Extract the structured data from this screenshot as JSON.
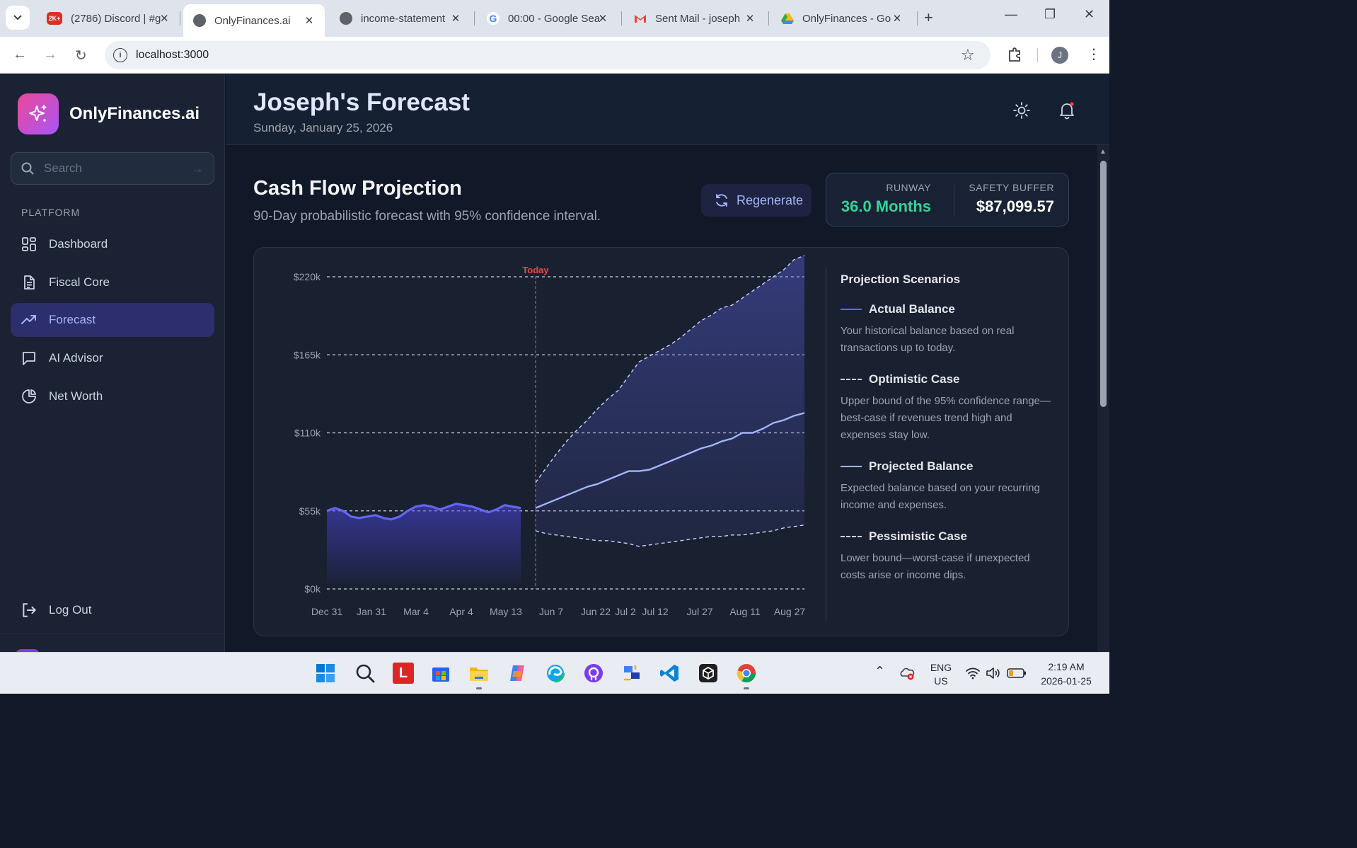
{
  "browser": {
    "tabs": [
      {
        "title": "(2786) Discord | #g",
        "badge": "2K+",
        "color": "#d93025"
      },
      {
        "title": "OnlyFinances.ai",
        "color": "#5f6368"
      },
      {
        "title": "income-statement",
        "color": "#5f6368"
      },
      {
        "title": "00:00 - Google Sea",
        "color": "#4285f4"
      },
      {
        "title": "Sent Mail - joseph",
        "color": "#ea4335"
      },
      {
        "title": "OnlyFinances - Go",
        "color": "#fbbc04"
      }
    ],
    "url": "localhost:3000",
    "profile_initial": "J"
  },
  "sidebar": {
    "app_name": "OnlyFinances.ai",
    "search_placeholder": "Search",
    "section_label": "PLATFORM",
    "items": [
      {
        "label": "Dashboard",
        "icon": "grid-icon"
      },
      {
        "label": "Fiscal Core",
        "icon": "document-icon"
      },
      {
        "label": "Forecast",
        "icon": "trend-up-icon",
        "active": true
      },
      {
        "label": "AI Advisor",
        "icon": "chat-icon"
      },
      {
        "label": "Net Worth",
        "icon": "pie-icon"
      }
    ],
    "logout_label": "Log Out"
  },
  "header": {
    "title": "Joseph's Forecast",
    "date": "Sunday, January 25, 2026"
  },
  "main": {
    "title": "Cash Flow Projection",
    "subtitle": "90-Day probabilistic forecast with 95% confidence interval.",
    "regenerate_label": "Regenerate",
    "runway_label": "RUNWAY",
    "runway_value": "36.0 Months",
    "buffer_label": "SAFETY BUFFER",
    "buffer_value": "$87,099.57"
  },
  "legend": {
    "title": "Projection Scenarios",
    "items": [
      {
        "name": "Actual Balance",
        "desc": "Your historical balance based on real transactions up to today.",
        "color": "#6366f1",
        "dashed": false
      },
      {
        "name": "Optimistic Case",
        "desc": "Upper bound of the 95% confidence range—best-case if revenues trend high and expenses stay low.",
        "color": "#c7d2fe",
        "dashed": true
      },
      {
        "name": "Projected Balance",
        "desc": "Expected balance based on your recurring income and expenses.",
        "color": "#a5b4fc",
        "dashed": false
      },
      {
        "name": "Pessimistic Case",
        "desc": "Lower bound—worst-case if unexpected costs arise or income dips.",
        "color": "#c7d2fe",
        "dashed": true
      }
    ]
  },
  "chart_data": {
    "type": "line",
    "today_label": "Today",
    "yticks": [
      "$0k",
      "$55k",
      "$110k",
      "$165k",
      "$220k"
    ],
    "ylim": [
      0,
      220
    ],
    "xticks": [
      "Dec 31",
      "Jan 31",
      "Mar 4",
      "Apr 4",
      "May 13",
      "Jun 7",
      "Jun 22",
      "Jul 2",
      "Jul 12",
      "Jul 27",
      "Aug 11",
      "Aug 27"
    ],
    "grid": true,
    "colors": {
      "actual": "#6366f1",
      "projected": "#a5b4fc",
      "bounds": "#c7d2fe",
      "today": "#ef4444"
    },
    "actual": [
      55,
      57,
      55,
      51,
      50,
      51,
      52,
      50,
      49,
      51,
      55,
      58,
      59,
      58,
      56,
      58,
      60,
      59,
      58,
      56,
      54,
      56,
      59,
      58,
      57
    ],
    "projected": [
      57,
      60,
      63,
      66,
      69,
      72,
      74,
      77,
      80,
      83,
      83,
      84,
      87,
      90,
      93,
      96,
      99,
      101,
      104,
      106,
      110,
      110,
      113,
      117,
      119,
      122,
      124
    ],
    "optimistic": [
      75,
      85,
      95,
      104,
      112,
      119,
      127,
      134,
      140,
      150,
      160,
      164,
      168,
      172,
      177,
      183,
      189,
      193,
      198,
      200,
      205,
      210,
      215,
      220,
      225,
      232,
      235
    ],
    "pessimistic": [
      41,
      39,
      38,
      37,
      36,
      35,
      34,
      34,
      33,
      32,
      30,
      31,
      32,
      33,
      34,
      35,
      36,
      37,
      37,
      38,
      38,
      39,
      40,
      41,
      43,
      44,
      45
    ]
  },
  "taskbar": {
    "lang_top": "ENG",
    "lang_bottom": "US",
    "time": "2:19 AM",
    "date": "2026-01-25"
  }
}
